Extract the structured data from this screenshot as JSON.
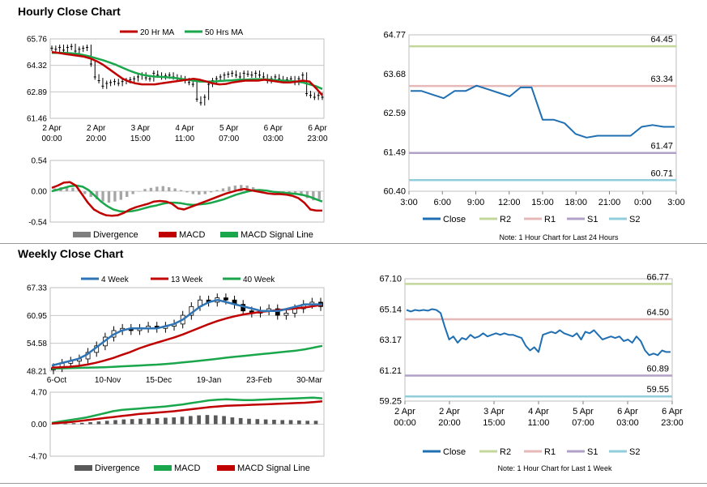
{
  "sections": {
    "hourly_title": "Hourly Close Chart",
    "weekly_title": "Weekly Close Chart"
  },
  "colors": {
    "red": "#c00000",
    "green": "#1aa64a",
    "blue": "#2e74b5",
    "gray": "#7f7f7f",
    "close": "#1f6fb2",
    "r2": "#c4d79b",
    "r1": "#e6b9b8",
    "s1": "#b1a0c7",
    "s2": "#92cddc"
  },
  "chart_data": [
    {
      "id": "hourly_price",
      "type": "ohlc",
      "legend": [
        {
          "label": "20 Hr MA",
          "color": "#c00000"
        },
        {
          "label": "50 Hrs MA",
          "color": "#1aa64a"
        }
      ],
      "y_ticks": [
        "65.76",
        "64.32",
        "62.89",
        "61.46"
      ],
      "ylim": [
        61.46,
        65.76
      ],
      "x_ticks": [
        {
          "l1": "2 Apr",
          "l2": "00:00"
        },
        {
          "l1": "2 Apr",
          "l2": "20:00"
        },
        {
          "l1": "3 Apr",
          "l2": "15:00"
        },
        {
          "l1": "4 Apr",
          "l2": "11:00"
        },
        {
          "l1": "5 Apr",
          "l2": "07:00"
        },
        {
          "l1": "6 Apr",
          "l2": "03:00"
        },
        {
          "l1": "6 Apr",
          "l2": "23:00"
        }
      ],
      "close": [
        65.25,
        65.2,
        65.3,
        65.15,
        65.3,
        65.35,
        65.1,
        65.2,
        65.25,
        65.3,
        64.4,
        63.7,
        63.5,
        63.2,
        63.35,
        63.4,
        63.45,
        63.35,
        63.45,
        63.5,
        63.55,
        63.6,
        63.7,
        63.8,
        63.65,
        63.6,
        63.9,
        63.8,
        63.7,
        63.75,
        63.8,
        63.7,
        63.65,
        63.6,
        63.5,
        63.4,
        63.3,
        62.5,
        62.3,
        62.6,
        63.3,
        63.5,
        63.6,
        63.7,
        63.8,
        63.85,
        63.9,
        63.8,
        63.7,
        63.9,
        63.85,
        63.8,
        63.9,
        63.8,
        63.7,
        63.5,
        63.6,
        63.7,
        63.6,
        63.5,
        63.55,
        63.6,
        63.4,
        63.6,
        63.8,
        62.8,
        62.7,
        62.6,
        62.7,
        62.6
      ],
      "ma20": [
        65.05,
        65.0,
        64.95,
        64.9,
        64.85,
        64.8,
        64.7,
        64.55,
        64.35,
        64.1,
        63.85,
        63.6,
        63.45,
        63.35,
        63.3,
        63.3,
        63.3,
        63.35,
        63.4,
        63.45,
        63.5,
        63.55,
        63.6,
        63.55,
        63.45,
        63.35,
        63.3,
        63.32,
        63.4,
        63.45,
        63.5,
        63.5,
        63.5,
        63.55,
        63.5,
        63.45,
        63.4,
        63.4,
        63.45,
        63.5,
        63.45,
        63.1,
        62.7
      ],
      "ma50": [
        65.0,
        65.0,
        65.0,
        64.98,
        64.95,
        64.88,
        64.8,
        64.7,
        64.6,
        64.48,
        64.35,
        64.2,
        64.05,
        63.92,
        63.82,
        63.76,
        63.72,
        63.7,
        63.68,
        63.65,
        63.6,
        63.55,
        63.5,
        63.45,
        63.45,
        63.45,
        63.48,
        63.5,
        63.52,
        63.55,
        63.55,
        63.57,
        63.58,
        63.57,
        63.55,
        63.52,
        63.5,
        63.48,
        63.45,
        63.4,
        63.3,
        63.2,
        63.05
      ]
    },
    {
      "id": "hourly_macd",
      "type": "macd",
      "y_ticks": [
        "0.54",
        "0.00",
        "-0.54"
      ],
      "ylim": [
        -0.54,
        0.54
      ],
      "legend": [
        {
          "label": "Divergence",
          "color": "#7f7f7f"
        },
        {
          "label": "MACD",
          "color": "#c00000"
        },
        {
          "label": "MACD Signal Line",
          "color": "#1aa64a"
        }
      ],
      "divergence": [
        0.05,
        0.07,
        0.08,
        0.06,
        0.02,
        -0.05,
        -0.1,
        -0.14,
        -0.18,
        -0.2,
        -0.18,
        -0.15,
        -0.1,
        -0.05,
        0.0,
        0.04,
        0.06,
        0.08,
        0.09,
        0.07,
        0.05,
        0.02,
        -0.02,
        -0.05,
        -0.06,
        -0.05,
        -0.02,
        0.02,
        0.05,
        0.08,
        0.1,
        0.11,
        0.1,
        0.07,
        0.04,
        0.01,
        -0.02,
        -0.04,
        -0.05,
        -0.06,
        -0.05,
        -0.08,
        -0.12,
        -0.16,
        -0.14
      ],
      "macd": [
        0.06,
        0.1,
        0.15,
        0.16,
        0.1,
        -0.05,
        -0.2,
        -0.32,
        -0.38,
        -0.42,
        -0.43,
        -0.42,
        -0.38,
        -0.32,
        -0.28,
        -0.25,
        -0.22,
        -0.18,
        -0.17,
        -0.18,
        -0.22,
        -0.3,
        -0.32,
        -0.28,
        -0.24,
        -0.2,
        -0.16,
        -0.12,
        -0.08,
        -0.04,
        -0.01,
        0.02,
        0.04,
        0.02,
        0.0,
        -0.02,
        -0.04,
        -0.05,
        -0.05,
        -0.06,
        -0.08,
        -0.12,
        -0.2,
        -0.32,
        -0.34,
        -0.34
      ],
      "signal": [
        0.0,
        0.03,
        0.06,
        0.09,
        0.1,
        0.08,
        0.02,
        -0.08,
        -0.18,
        -0.26,
        -0.32,
        -0.35,
        -0.36,
        -0.35,
        -0.33,
        -0.3,
        -0.27,
        -0.25,
        -0.22,
        -0.2,
        -0.2,
        -0.21,
        -0.23,
        -0.24,
        -0.23,
        -0.22,
        -0.2,
        -0.17,
        -0.14,
        -0.1,
        -0.06,
        -0.03,
        0.0,
        0.02,
        0.02,
        0.01,
        -0.01,
        -0.02,
        -0.03,
        -0.04,
        -0.05,
        -0.07,
        -0.1,
        -0.14,
        -0.18
      ]
    },
    {
      "id": "hourly_levels",
      "type": "line",
      "y_ticks": [
        "64.77",
        "63.68",
        "62.59",
        "61.49",
        "60.40"
      ],
      "ylim": [
        60.4,
        64.77
      ],
      "x_ticks": [
        "3:00",
        "6:00",
        "9:00",
        "12:00",
        "15:00",
        "18:00",
        "21:00",
        "0:00",
        "3:00"
      ],
      "close": [
        63.2,
        63.2,
        63.1,
        63.0,
        63.2,
        63.2,
        63.35,
        63.25,
        63.15,
        63.05,
        63.3,
        63.3,
        62.4,
        62.4,
        62.3,
        62.0,
        61.9,
        61.95,
        61.95,
        61.95,
        61.95,
        62.2,
        62.25,
        62.2,
        62.2
      ],
      "levels": [
        {
          "name": "R2",
          "value": 64.45,
          "label": "64.45",
          "color": "#c4d79b"
        },
        {
          "name": "R1",
          "value": 63.34,
          "label": "63.34",
          "color": "#e6b9b8"
        },
        {
          "name": "S1",
          "value": 61.47,
          "label": "61.47",
          "color": "#b1a0c7"
        },
        {
          "name": "S2",
          "value": 60.71,
          "label": "60.71",
          "color": "#92cddc"
        }
      ],
      "legend": [
        {
          "label": "Close",
          "color": "#1f6fb2"
        },
        {
          "label": "R2",
          "color": "#c4d79b"
        },
        {
          "label": "R1",
          "color": "#e6b9b8"
        },
        {
          "label": "S1",
          "color": "#b1a0c7"
        },
        {
          "label": "S2",
          "color": "#92cddc"
        }
      ],
      "note": "Note: 1 Hour Chart for Last 24 Hours"
    },
    {
      "id": "weekly_price",
      "type": "ohlc",
      "legend": [
        {
          "label": "4 Week",
          "color": "#2e74b5"
        },
        {
          "label": "13 Week",
          "color": "#c00000"
        },
        {
          "label": "40 Week",
          "color": "#1aa64a"
        }
      ],
      "y_ticks": [
        "67.33",
        "60.95",
        "54.58",
        "48.21"
      ],
      "ylim": [
        48.21,
        67.33
      ],
      "x_ticks": [
        "6-Oct",
        "10-Nov",
        "15-Dec",
        "19-Jan",
        "23-Feb",
        "30-Mar"
      ],
      "close": [
        49.0,
        50.0,
        50.5,
        51.0,
        52.5,
        54.0,
        56.0,
        57.5,
        58.0,
        57.5,
        58.0,
        58.5,
        58.0,
        58.5,
        59.0,
        61.0,
        63.0,
        64.5,
        64.0,
        65.0,
        64.5,
        63.5,
        62.0,
        61.5,
        62.0,
        62.5,
        61.0,
        61.5,
        62.5,
        63.5,
        64.0,
        63.0
      ],
      "ma4": [
        49.5,
        50.0,
        50.5,
        51.0,
        52.0,
        53.5,
        55.0,
        56.5,
        57.5,
        58.0,
        58.0,
        58.0,
        58.0,
        58.5,
        59.0,
        60.0,
        61.5,
        63.0,
        64.0,
        64.5,
        64.0,
        63.5,
        63.0,
        62.5,
        62.0,
        62.0,
        62.0,
        62.5,
        63.0,
        63.5,
        63.5,
        63.5
      ],
      "ma13": [
        49.0,
        49.1,
        49.2,
        49.4,
        49.7,
        50.1,
        50.6,
        51.2,
        51.9,
        52.6,
        53.4,
        54.1,
        54.7,
        55.3,
        55.9,
        56.6,
        57.4,
        58.2,
        59.0,
        59.7,
        60.3,
        60.8,
        61.2,
        61.5,
        61.8,
        62.0,
        62.2,
        62.4,
        62.6,
        62.8,
        63.1,
        63.4
      ],
      "ma40": [
        48.8,
        48.85,
        48.9,
        48.95,
        49.0,
        49.05,
        49.1,
        49.2,
        49.3,
        49.4,
        49.5,
        49.6,
        49.7,
        49.85,
        50.0,
        50.2,
        50.4,
        50.6,
        50.8,
        51.05,
        51.3,
        51.5,
        51.7,
        51.9,
        52.1,
        52.3,
        52.5,
        52.7,
        52.9,
        53.2,
        53.6,
        54.0
      ]
    },
    {
      "id": "weekly_macd",
      "type": "macd",
      "y_ticks": [
        "4.70",
        "0.00",
        "-4.70"
      ],
      "ylim": [
        -4.7,
        4.7
      ],
      "legend": [
        {
          "label": "Divergence",
          "color": "#595959"
        },
        {
          "label": "MACD",
          "color": "#1aa64a"
        },
        {
          "label": "MACD Signal Line",
          "color": "#c00000"
        }
      ],
      "divergence": [
        0.05,
        0.1,
        0.15,
        0.2,
        0.3,
        0.4,
        0.5,
        0.6,
        0.7,
        0.75,
        0.8,
        0.85,
        0.9,
        0.95,
        1.0,
        1.1,
        1.2,
        1.3,
        1.35,
        1.3,
        1.2,
        1.0,
        0.9,
        0.8,
        0.75,
        0.7,
        0.65,
        0.6,
        0.6,
        0.55,
        0.5,
        0.5
      ],
      "macd": [
        0.2,
        0.4,
        0.6,
        0.8,
        1.0,
        1.3,
        1.6,
        1.9,
        2.1,
        2.2,
        2.3,
        2.4,
        2.5,
        2.6,
        2.75,
        2.9,
        3.1,
        3.3,
        3.5,
        3.6,
        3.65,
        3.6,
        3.55,
        3.55,
        3.6,
        3.65,
        3.7,
        3.75,
        3.8,
        3.85,
        3.9,
        3.8
      ],
      "signal": [
        0.1,
        0.2,
        0.3,
        0.45,
        0.6,
        0.75,
        0.9,
        1.05,
        1.2,
        1.35,
        1.5,
        1.6,
        1.7,
        1.8,
        1.9,
        2.05,
        2.2,
        2.35,
        2.5,
        2.6,
        2.7,
        2.75,
        2.8,
        2.85,
        2.9,
        2.95,
        3.0,
        3.05,
        3.1,
        3.15,
        3.25,
        3.35
      ]
    },
    {
      "id": "weekly_levels",
      "type": "line",
      "y_ticks": [
        "67.10",
        "65.14",
        "63.17",
        "61.21",
        "59.25"
      ],
      "ylim": [
        59.25,
        67.1
      ],
      "x_ticks": [
        {
          "l1": "2 Apr",
          "l2": "00:00"
        },
        {
          "l1": "2 Apr",
          "l2": "20:00"
        },
        {
          "l1": "3 Apr",
          "l2": "15:00"
        },
        {
          "l1": "4 Apr",
          "l2": "11:00"
        },
        {
          "l1": "5 Apr",
          "l2": "07:00"
        },
        {
          "l1": "6 Apr",
          "l2": "03:00"
        },
        {
          "l1": "6 Apr",
          "l2": "23:00"
        }
      ],
      "close": [
        65.1,
        65.0,
        65.1,
        65.05,
        65.1,
        65.05,
        65.15,
        65.1,
        64.9,
        64.0,
        63.2,
        63.4,
        63.0,
        63.3,
        63.2,
        63.5,
        63.3,
        63.4,
        63.6,
        63.4,
        63.5,
        63.6,
        63.5,
        63.6,
        63.5,
        63.5,
        63.4,
        63.3,
        62.8,
        62.5,
        62.7,
        62.4,
        63.5,
        63.6,
        63.7,
        63.6,
        63.8,
        63.6,
        63.5,
        63.4,
        63.6,
        63.2,
        63.7,
        63.6,
        63.8,
        63.5,
        63.2,
        63.3,
        63.4,
        63.3,
        63.4,
        63.1,
        63.2,
        63.0,
        63.4,
        63.1,
        62.5,
        62.2,
        62.3,
        62.2,
        62.5,
        62.4,
        62.4
      ],
      "levels": [
        {
          "name": "R2",
          "value": 66.77,
          "label": "66.77",
          "color": "#c4d79b"
        },
        {
          "name": "R1",
          "value": 64.5,
          "label": "64.50",
          "color": "#e6b9b8"
        },
        {
          "name": "S1",
          "value": 60.89,
          "label": "60.89",
          "color": "#b1a0c7"
        },
        {
          "name": "S2",
          "value": 59.55,
          "label": "59.55",
          "color": "#92cddc"
        }
      ],
      "legend": [
        {
          "label": "Close",
          "color": "#1f6fb2"
        },
        {
          "label": "R2",
          "color": "#c4d79b"
        },
        {
          "label": "R1",
          "color": "#e6b9b8"
        },
        {
          "label": "S1",
          "color": "#b1a0c7"
        },
        {
          "label": "S2",
          "color": "#92cddc"
        }
      ],
      "note": "Note: 1 Hour Chart for Last 1 Week"
    }
  ]
}
